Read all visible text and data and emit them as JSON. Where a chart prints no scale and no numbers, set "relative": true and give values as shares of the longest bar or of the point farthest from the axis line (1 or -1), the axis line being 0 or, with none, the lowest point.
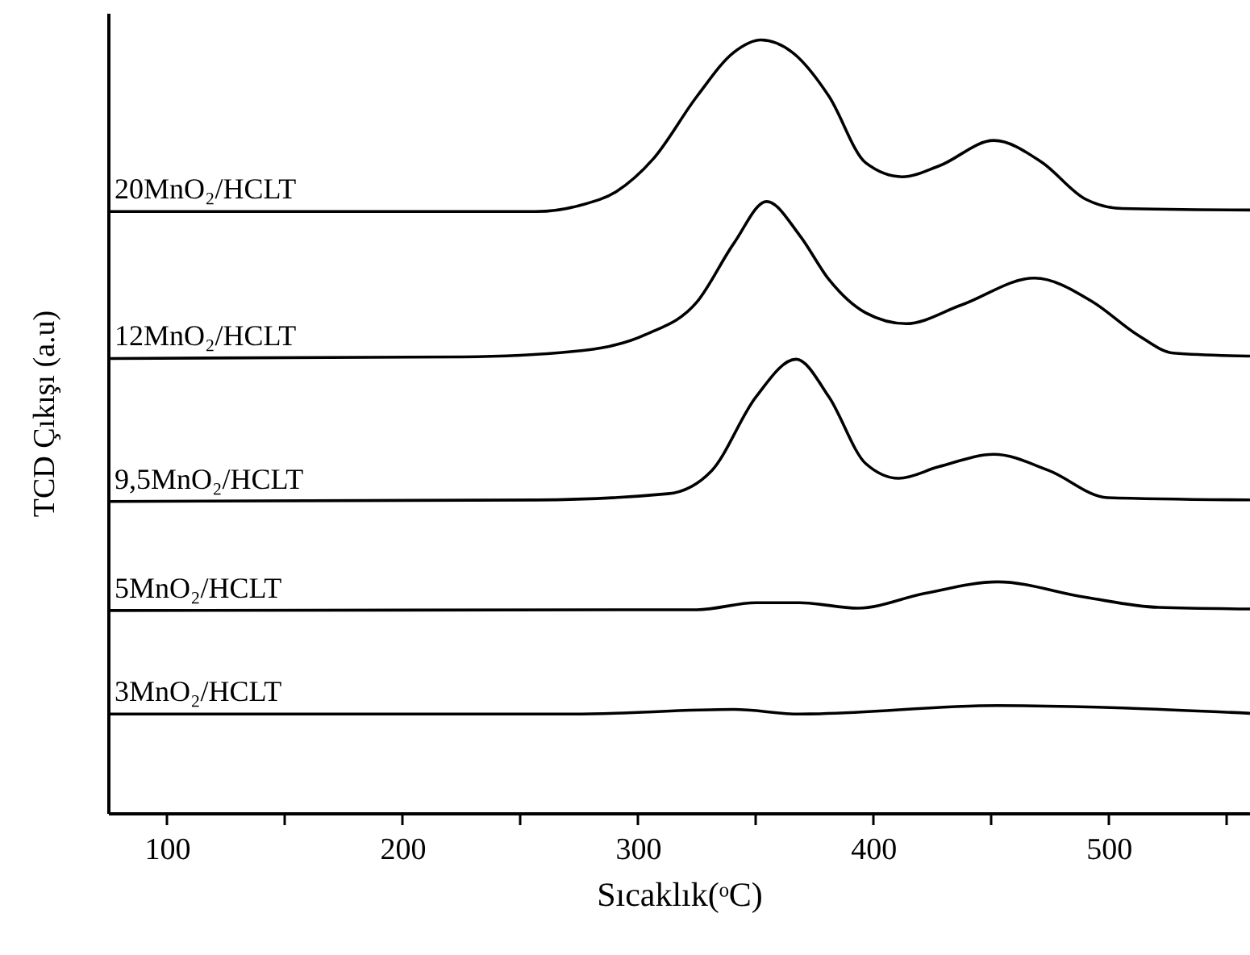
{
  "chart_data": {
    "type": "line",
    "relative": true,
    "xlabel": "Sıcaklık(ᵒC)",
    "ylabel": "TCD Çıkışı (a.u)",
    "xlim": [
      75,
      560
    ],
    "xticks": [
      100,
      {
        "value": 150,
        "label": null
      },
      200,
      {
        "value": 250,
        "label": null
      },
      300,
      {
        "value": 350,
        "label": null
      },
      400,
      {
        "value": 450,
        "label": null
      },
      500,
      {
        "value": 550,
        "label": null
      }
    ],
    "grid": false,
    "marker": "none",
    "line_style": "solid",
    "series": [
      {
        "name": "20MnO₂/HCLT",
        "color": "#000000",
        "x": [
          75,
          256.6,
          275.3,
          290.9,
          306.5,
          325.1,
          340.8,
          352.3,
          365.6,
          381.2,
          396.8,
          412.3,
          427.9,
          451.2,
          471.5,
          490.2,
          505.8,
          560
        ],
        "values": [
          0.778,
          0.778,
          0.786,
          0.804,
          0.846,
          0.927,
          0.984,
          1.0,
          0.984,
          0.927,
          0.841,
          0.823,
          0.837,
          0.87,
          0.842,
          0.794,
          0.782,
          0.78
        ]
      },
      {
        "name": "12MnO₂/HCLT",
        "color": "#000000",
        "x": [
          75,
          225.5,
          272.3,
          303.4,
          325.1,
          340.8,
          354.7,
          368.8,
          381.2,
          396.8,
          413.9,
          437.3,
          468.4,
          493.3,
          512.0,
          527.5,
          560
        ],
        "values": [
          0.588,
          0.59,
          0.597,
          0.619,
          0.661,
          0.737,
          0.791,
          0.747,
          0.69,
          0.647,
          0.633,
          0.657,
          0.692,
          0.661,
          0.619,
          0.595,
          0.591
        ]
      },
      {
        "name": "9,5MnO₂/HCLT",
        "color": "#000000",
        "x": [
          75,
          256.6,
          312.7,
          331.4,
          350.1,
          367.2,
          381.2,
          396.8,
          410.8,
          427.9,
          451.2,
          474.6,
          499.5,
          560
        ],
        "values": [
          0.403,
          0.405,
          0.413,
          0.443,
          0.538,
          0.587,
          0.538,
          0.452,
          0.433,
          0.448,
          0.464,
          0.443,
          0.408,
          0.405
        ]
      },
      {
        "name": "5MnO₂/HCLT",
        "color": "#000000",
        "x": [
          75,
          325.1,
          350.1,
          368.8,
          393.6,
          421.7,
          452.8,
          490.2,
          521.3,
          560
        ],
        "values": [
          0.262,
          0.263,
          0.272,
          0.272,
          0.265,
          0.284,
          0.299,
          0.279,
          0.266,
          0.264
        ]
      },
      {
        "name": "3MnO₂/HCLT",
        "color": "#000000",
        "x": [
          75,
          272.3,
          340.8,
          368.8,
          452.8,
          560
        ],
        "values": [
          0.128,
          0.128,
          0.134,
          0.128,
          0.139,
          0.129
        ]
      }
    ]
  }
}
